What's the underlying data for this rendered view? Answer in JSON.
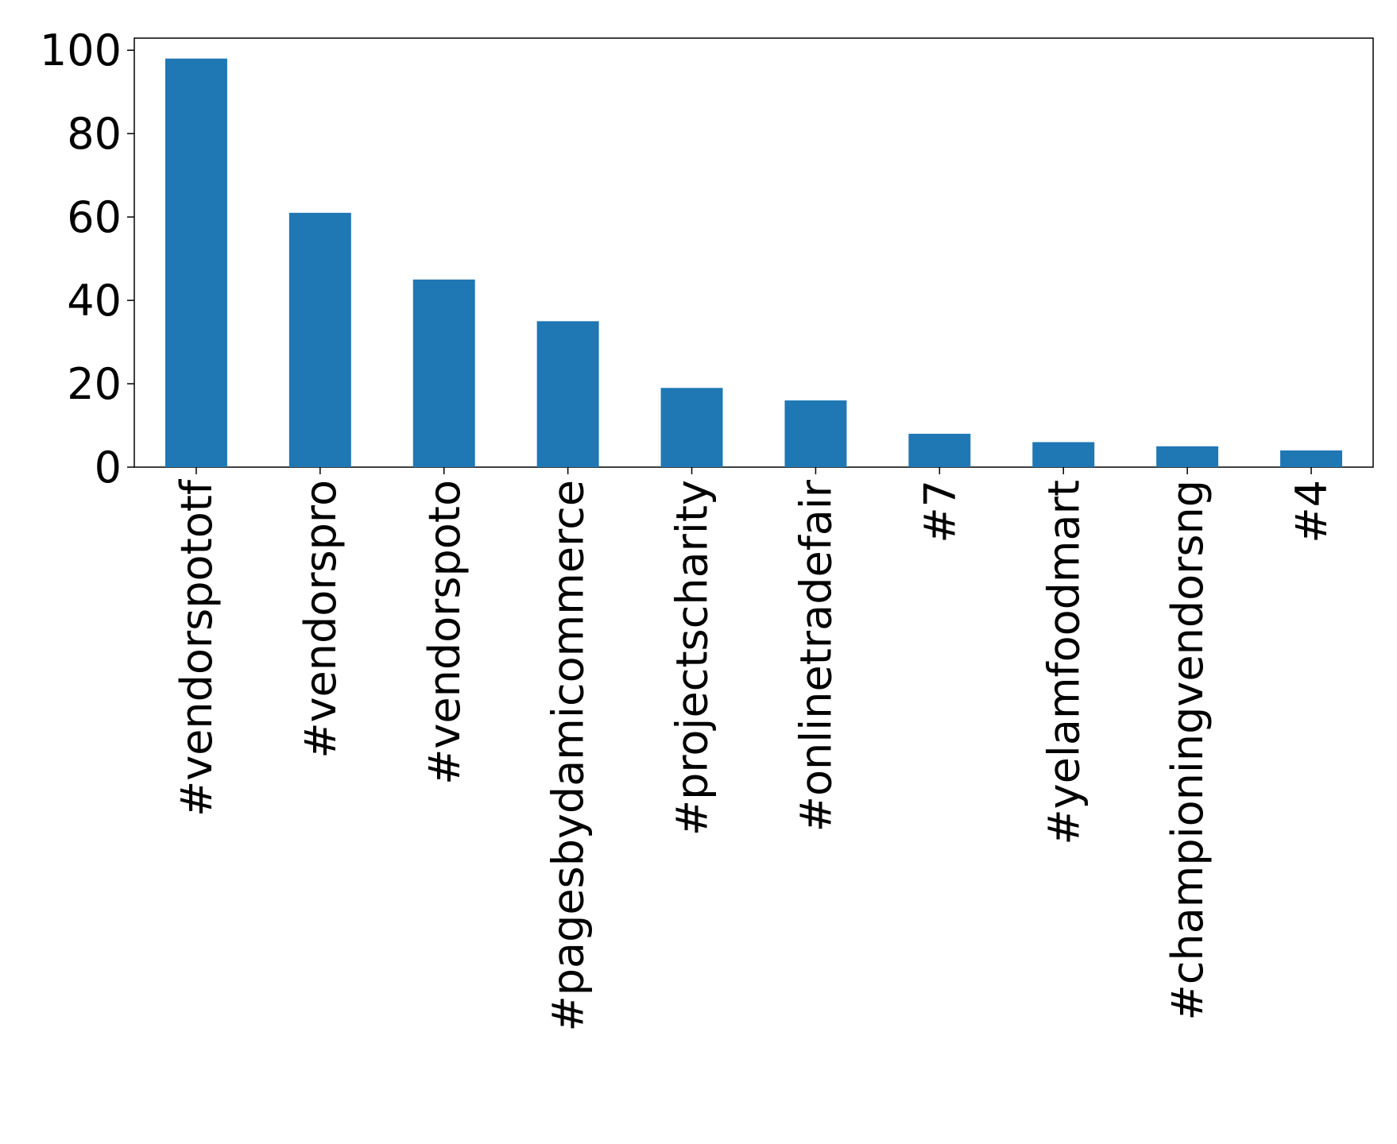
{
  "chart_data": {
    "type": "bar",
    "categories": [
      "#vendorspototf",
      "#vendorspro",
      "#vendorspoto",
      "#pagesbydamicommerce",
      "#projectscharity",
      "#onlinetradefair",
      "#7",
      "#yelamfoodmart",
      "#championingvendorsng",
      "#4"
    ],
    "values": [
      98,
      61,
      45,
      35,
      19,
      16,
      8,
      6,
      5,
      4
    ],
    "color": "#1f77b4",
    "ylim": [
      0,
      102.9
    ],
    "yticks": [
      0,
      20,
      40,
      60,
      80,
      100
    ],
    "grid": false
  }
}
